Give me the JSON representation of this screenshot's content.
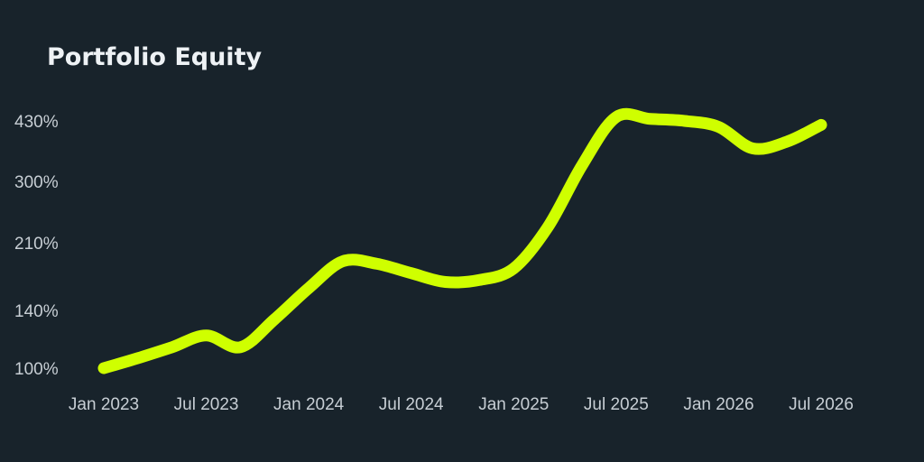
{
  "chart_data": {
    "type": "line",
    "title": "Portfolio Equity",
    "xlabel": "",
    "ylabel": "",
    "y_scale": "log",
    "grid": false,
    "line_color": "#cfff00",
    "background": "#18232b",
    "y_ticks": [
      "100%",
      "140%",
      "210%",
      "300%",
      "430%"
    ],
    "x_ticks": [
      "Jan 2023",
      "Jul 2023",
      "Jan 2024",
      "Jul 2024",
      "Jan 2025",
      "Jul 2025",
      "Jan 2026",
      "Jul 2026"
    ],
    "x": [
      "2023-01",
      "2023-03",
      "2023-05",
      "2023-07",
      "2023-09",
      "2023-11",
      "2024-01",
      "2024-03",
      "2024-05",
      "2024-07",
      "2024-09",
      "2024-11",
      "2025-01",
      "2025-03",
      "2025-05",
      "2025-07",
      "2025-09",
      "2025-11",
      "2026-01",
      "2026-03",
      "2026-05",
      "2026-07"
    ],
    "series": [
      {
        "values": [
          100,
          106,
          113,
          121,
          113,
          133,
          160,
          188,
          185,
          175,
          166,
          168,
          180,
          230,
          330,
          440,
          435,
          430,
          415,
          365,
          380,
          420
        ]
      }
    ]
  }
}
